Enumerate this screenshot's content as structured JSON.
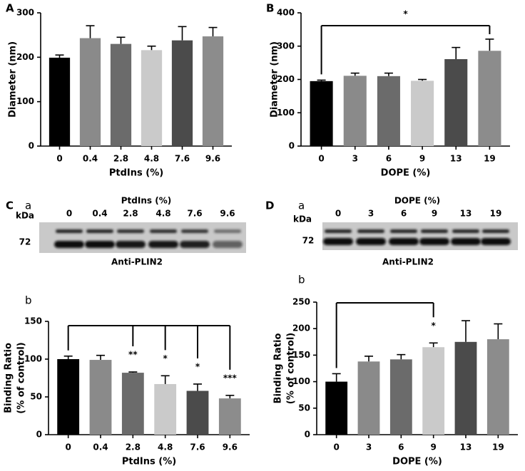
{
  "chart_data": [
    {
      "type": "bar",
      "panel": "A",
      "x_label": "PtdIns (%)",
      "y_label": "Diameter (nm)",
      "categories": [
        "0",
        "0.4",
        "2.8",
        "4.8",
        "7.6",
        "9.6"
      ],
      "values": [
        199,
        243,
        230,
        216,
        238,
        247
      ],
      "errors": [
        6,
        28,
        15,
        9,
        31,
        20
      ],
      "colors": [
        "#000000",
        "#8a8a8a",
        "#6b6b6b",
        "#cacaca",
        "#4b4b4b",
        "#8c8c8c"
      ],
      "ylim": [
        0,
        300
      ],
      "yticks": [
        0,
        100,
        200,
        300
      ]
    },
    {
      "type": "bar",
      "panel": "B",
      "x_label": "DOPE (%)",
      "y_label": "Diameter (nm)",
      "categories": [
        "0",
        "3",
        "6",
        "9",
        "13",
        "19"
      ],
      "values": [
        195,
        211,
        210,
        196,
        261,
        286
      ],
      "errors": [
        3,
        8,
        9,
        4,
        35,
        35
      ],
      "colors": [
        "#000000",
        "#8a8a8a",
        "#6b6b6b",
        "#cacaca",
        "#4b4b4b",
        "#8c8c8c"
      ],
      "significance": [
        null,
        null,
        null,
        null,
        null,
        "*"
      ],
      "ylim": [
        0,
        400
      ],
      "yticks": [
        0,
        100,
        200,
        300,
        400
      ]
    },
    {
      "type": "bar",
      "panel": "C",
      "sub_label": "b",
      "x_label": "PtdIns (%)",
      "y_label": [
        "Binding Ratio",
        "(% of control)"
      ],
      "categories": [
        "0",
        "0.4",
        "2.8",
        "4.8",
        "7.6",
        "9.6"
      ],
      "values": [
        100,
        99,
        82,
        67,
        58,
        48
      ],
      "errors": [
        4,
        6,
        1,
        11,
        9,
        4
      ],
      "colors": [
        "#000000",
        "#8a8a8a",
        "#6b6b6b",
        "#cacaca",
        "#4b4b4b",
        "#8c8c8c"
      ],
      "significance": [
        null,
        null,
        "**",
        "*",
        "*",
        "***"
      ],
      "ylim": [
        0,
        150
      ],
      "yticks": [
        0,
        50,
        100,
        150
      ]
    },
    {
      "type": "bar",
      "panel": "D",
      "sub_label": "b",
      "x_label": "DOPE (%)",
      "y_label": [
        "Binding Ratio",
        "(% of control)"
      ],
      "categories": [
        "0",
        "3",
        "6",
        "9",
        "13",
        "19"
      ],
      "values": [
        100,
        138,
        142,
        165,
        175,
        180
      ],
      "errors": [
        15,
        10,
        9,
        8,
        40,
        29
      ],
      "colors": [
        "#000000",
        "#8a8a8a",
        "#6b6b6b",
        "#cacaca",
        "#4b4b4b",
        "#8c8c8c"
      ],
      "significance": [
        null,
        null,
        null,
        "*",
        null,
        null
      ],
      "ylim": [
        0,
        250
      ],
      "yticks": [
        0,
        50,
        100,
        150,
        200,
        250
      ]
    }
  ],
  "blots": [
    {
      "sub_label": "a",
      "title": "PtdIns (%)",
      "kda": "kDa",
      "mw": "72",
      "antibody": "Anti-PLIN2",
      "lanes": [
        "0",
        "0.4",
        "2.8",
        "4.8",
        "7.6",
        "9.6"
      ]
    },
    {
      "sub_label": "a",
      "title": "DOPE (%)",
      "kda": "kDa",
      "mw": "72",
      "antibody": "Anti-PLIN2",
      "lanes": [
        "0",
        "3",
        "6",
        "9",
        "13",
        "19"
      ]
    }
  ]
}
